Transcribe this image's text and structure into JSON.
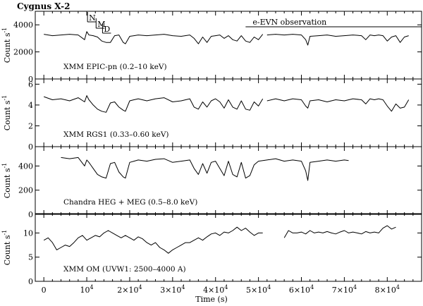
{
  "title": "Cygnus X-2",
  "chart_data": {
    "type": "line",
    "title": "Cygnus X-2",
    "xlabel": "Time (s)",
    "xlim": [
      -2000,
      88000
    ],
    "x_ticks": [
      0,
      10000,
      20000,
      30000,
      40000,
      50000,
      60000,
      70000,
      80000
    ],
    "x_ticklabels": [
      "0",
      "10^4",
      "2×10^4",
      "3×10^4",
      "4×10^4",
      "5×10^4",
      "6×10^4",
      "7×10^4",
      "8×10^4"
    ],
    "annotations": {
      "states": [
        "N",
        "M",
        "D"
      ],
      "observation_label": "e-EVN observation",
      "observation_span": [
        47000,
        88000
      ]
    },
    "panels": [
      {
        "label": "XMM EPIC-pn (0.2–10 keV)",
        "ylabel": "Count s^-1",
        "ylim": [
          0,
          5000
        ],
        "yticks": [
          0,
          2000,
          4000
        ],
        "segments": [
          {
            "x": [
              0,
              2000,
              4000,
              6000,
              8000,
              9500,
              10000,
              10500,
              11500,
              12500,
              13500,
              14500,
              15500,
              16500,
              17500,
              18500,
              19000,
              20000,
              21000,
              22000,
              24000,
              26000,
              28000,
              30000,
              32000,
              34000,
              35000,
              36000,
              37000,
              38000,
              39000,
              40000,
              41000,
              42000,
              43000,
              44000,
              45000,
              46000,
              47000,
              48000,
              49000,
              50000,
              51000
            ],
            "y": [
              3300,
              3200,
              3250,
              3300,
              3250,
              2900,
              3500,
              3250,
              3200,
              3100,
              2800,
              2700,
              2700,
              3200,
              3250,
              2700,
              2600,
              3150,
              3200,
              3250,
              3200,
              3250,
              3300,
              3200,
              3150,
              3250,
              3000,
              2600,
              3100,
              2700,
              3150,
              3200,
              3250,
              3000,
              3200,
              2900,
              2800,
              3200,
              2800,
              2700,
              3100,
              2900,
              3300
            ]
          },
          {
            "x": [
              52000,
              54000,
              56000,
              58000,
              60000,
              61000,
              61500,
              62000,
              64000,
              66000,
              68000,
              70000,
              72000,
              74000,
              75000,
              76000,
              77000,
              78000,
              79000,
              80000,
              81000,
              82000,
              83000,
              84000,
              85000
            ],
            "y": [
              3250,
              3300,
              3250,
              3300,
              3250,
              2900,
              2500,
              3150,
              3200,
              3250,
              3150,
              3200,
              3250,
              3200,
              2900,
              3250,
              3200,
              3250,
              3200,
              2800,
              3100,
              3200,
              2700,
              3100,
              3200
            ]
          }
        ]
      },
      {
        "label": "XMM RGS1 (0.33–0.60 keV)",
        "ylabel": "Count s^-1",
        "ylim": [
          0,
          6.5
        ],
        "yticks": [
          0,
          2,
          4,
          6
        ],
        "segments": [
          {
            "x": [
              0,
              2000,
              4000,
              6000,
              8000,
              9500,
              10000,
              10500,
              11500,
              12500,
              13500,
              14500,
              15500,
              16500,
              17500,
              18500,
              19000,
              20000,
              21000,
              22000,
              24000,
              26000,
              28000,
              30000,
              32000,
              34000,
              35000,
              36000,
              37000,
              38000,
              39000,
              40000,
              41000,
              42000,
              43000,
              44000,
              45000,
              46000,
              47000,
              48000,
              49000,
              50000,
              51000
            ],
            "y": [
              4.8,
              4.5,
              4.6,
              4.4,
              4.7,
              4.3,
              4.9,
              4.5,
              4.0,
              3.6,
              3.4,
              3.3,
              4.2,
              4.3,
              3.8,
              3.5,
              3.4,
              4.4,
              4.5,
              4.6,
              4.4,
              4.6,
              4.7,
              4.3,
              4.4,
              4.6,
              3.8,
              3.6,
              4.3,
              3.8,
              4.4,
              4.6,
              4.3,
              3.7,
              4.5,
              3.8,
              3.6,
              4.4,
              3.6,
              3.5,
              4.3,
              3.9,
              4.6
            ]
          },
          {
            "x": [
              52000,
              54000,
              56000,
              58000,
              60000,
              61000,
              61500,
              62000,
              64000,
              66000,
              68000,
              70000,
              72000,
              74000,
              75000,
              76000,
              77000,
              78000,
              79000,
              80000,
              81000,
              82000,
              83000,
              84000,
              85000
            ],
            "y": [
              4.4,
              4.6,
              4.4,
              4.6,
              4.5,
              3.9,
              3.7,
              4.4,
              4.5,
              4.3,
              4.5,
              4.4,
              4.6,
              4.5,
              4.1,
              4.6,
              4.5,
              4.6,
              4.5,
              3.9,
              3.4,
              4.1,
              3.7,
              3.8,
              4.5
            ]
          }
        ]
      },
      {
        "label": "Chandra HEG + MEG (0.5–8.0 keV)",
        "ylabel": "Count s^-1",
        "ylim": [
          0,
          560
        ],
        "yticks": [
          0,
          200,
          400
        ],
        "segments": [
          {
            "x": [
              4000,
              6000,
              8000,
              9500,
              10000,
              10500,
              11500,
              12500,
              13500,
              14500,
              15500,
              16500,
              17500,
              18500,
              19000,
              20000,
              21000,
              22000,
              24000,
              26000,
              28000,
              30000,
              32000,
              34000,
              35000,
              36000,
              37000,
              38000,
              39000,
              40000,
              41000,
              42000,
              43000,
              44000,
              45000,
              46000,
              47000,
              48000,
              49000,
              50000,
              52000,
              54000,
              56000,
              58000,
              60000,
              61000,
              61500,
              62000,
              64000,
              66000,
              68000,
              70000,
              71000
            ],
            "y": [
              470,
              460,
              470,
              400,
              450,
              430,
              380,
              330,
              310,
              300,
              420,
              430,
              350,
              310,
              300,
              430,
              440,
              450,
              440,
              455,
              460,
              430,
              440,
              450,
              380,
              330,
              420,
              340,
              430,
              440,
              380,
              320,
              440,
              330,
              310,
              430,
              300,
              320,
              410,
              440,
              450,
              460,
              440,
              450,
              440,
              360,
              280,
              430,
              440,
              450,
              440,
              450,
              445
            ]
          }
        ]
      },
      {
        "label": "XMM OM (UVW1: 2500–4000 A)",
        "ylabel": "Count s^-1",
        "ylim": [
          0,
          14
        ],
        "yticks": [
          0,
          5,
          10
        ],
        "segments": [
          {
            "x": [
              0,
              1000,
              2000,
              3000,
              4000,
              5000,
              6000,
              7000,
              8000,
              9000,
              10000,
              11000,
              12000,
              13000,
              14000,
              15000,
              16000,
              17000,
              18000,
              19000,
              20000,
              21000,
              22000,
              23000,
              24000,
              25000,
              26000,
              27000,
              28000,
              29000,
              30000,
              31000,
              32000,
              33000,
              34000,
              35000,
              36000,
              37000,
              38000,
              39000,
              40000,
              41000,
              42000,
              43000,
              44000,
              45000,
              46000,
              47000,
              48000,
              49000,
              50000,
              51000
            ],
            "y": [
              8.5,
              9.0,
              8.0,
              6.5,
              7.0,
              7.5,
              7.2,
              8.0,
              9.0,
              9.5,
              8.5,
              9.0,
              9.5,
              9.2,
              10.0,
              10.5,
              10.0,
              9.5,
              9.0,
              9.5,
              9.0,
              8.5,
              9.2,
              8.8,
              8.0,
              7.5,
              8.0,
              7.0,
              6.5,
              5.8,
              6.5,
              7.0,
              7.5,
              8.0,
              8.0,
              8.5,
              9.0,
              8.5,
              9.2,
              9.8,
              10.0,
              9.5,
              10.2,
              10.0,
              10.5,
              11.2,
              10.5,
              11.0,
              10.2,
              9.5,
              10.0,
              10.0
            ]
          },
          {
            "x": [
              56000,
              57000,
              58000,
              59000,
              60000,
              61000,
              62000,
              63000,
              64000,
              65000,
              66000,
              67000,
              68000,
              69000,
              70000,
              71000,
              72000,
              73000,
              74000,
              75000,
              76000,
              77000,
              78000,
              79000,
              80000,
              81000,
              82000
            ],
            "y": [
              9.0,
              10.5,
              10.0,
              10.0,
              10.2,
              9.8,
              10.5,
              10.0,
              10.2,
              10.0,
              10.3,
              10.0,
              9.8,
              10.2,
              10.5,
              10.0,
              10.2,
              10.0,
              9.8,
              10.3,
              10.0,
              10.2,
              10.0,
              11.0,
              11.5,
              10.8,
              11.2
            ]
          }
        ]
      }
    ]
  }
}
